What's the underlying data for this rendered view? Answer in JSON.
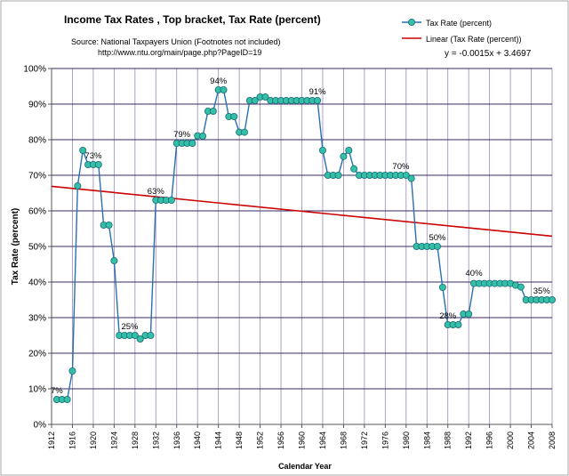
{
  "chart_data": {
    "type": "line",
    "title": "Income Tax Rates ,  Top bracket,  Tax Rate (percent)",
    "source_line": "Source: National Taxpayers Union (Footnotes not included)",
    "url_line": "http://www.ntu.org/main/page.php?PageID=19",
    "xlabel": "Calendar Year",
    "ylabel": "Tax Rate (percent)",
    "xlim": [
      1912,
      2008
    ],
    "ylim": [
      0,
      100
    ],
    "x_ticks": [
      1912,
      1916,
      1920,
      1924,
      1928,
      1932,
      1936,
      1940,
      1944,
      1948,
      1952,
      1956,
      1960,
      1964,
      1968,
      1972,
      1976,
      1980,
      1984,
      1988,
      1992,
      1996,
      2000,
      2004,
      2008
    ],
    "y_ticks": [
      0,
      10,
      20,
      30,
      40,
      50,
      60,
      70,
      80,
      90,
      100
    ],
    "y_tick_suffix": "%",
    "grid": true,
    "legend_position": "top-right",
    "series": [
      {
        "name": "Tax Rate (percent)",
        "color": "#2a6fb0",
        "marker_color": "#33c0a6",
        "x": [
          1913,
          1914,
          1915,
          1916,
          1917,
          1918,
          1919,
          1920,
          1921,
          1922,
          1923,
          1924,
          1925,
          1926,
          1927,
          1928,
          1929,
          1930,
          1931,
          1932,
          1933,
          1934,
          1935,
          1936,
          1937,
          1938,
          1939,
          1940,
          1941,
          1942,
          1943,
          1944,
          1945,
          1946,
          1947,
          1948,
          1949,
          1950,
          1951,
          1952,
          1953,
          1954,
          1955,
          1956,
          1957,
          1958,
          1959,
          1960,
          1961,
          1962,
          1963,
          1964,
          1965,
          1966,
          1967,
          1968,
          1969,
          1970,
          1971,
          1972,
          1973,
          1974,
          1975,
          1976,
          1977,
          1978,
          1979,
          1980,
          1981,
          1982,
          1983,
          1984,
          1985,
          1986,
          1987,
          1988,
          1989,
          1990,
          1991,
          1992,
          1993,
          1994,
          1995,
          1996,
          1997,
          1998,
          1999,
          2000,
          2001,
          2002,
          2003,
          2004,
          2005,
          2006,
          2007,
          2008
        ],
        "values": [
          7,
          7,
          7,
          15,
          67,
          77,
          73,
          73,
          73,
          56,
          56,
          46,
          25,
          25,
          25,
          25,
          24,
          25,
          25,
          63,
          63,
          63,
          63,
          79,
          79,
          79,
          79,
          81.1,
          81,
          88,
          88,
          94,
          94,
          86.5,
          86.5,
          82.1,
          82.1,
          91,
          91,
          92,
          92,
          91,
          91,
          91,
          91,
          91,
          91,
          91,
          91,
          91,
          91,
          77,
          70,
          70,
          70,
          75.3,
          77,
          71.8,
          70,
          70,
          70,
          70,
          70,
          70,
          70,
          70,
          70,
          70,
          69.1,
          50,
          50,
          50,
          50,
          50,
          38.5,
          28,
          28,
          28,
          31,
          31,
          39.6,
          39.6,
          39.6,
          39.6,
          39.6,
          39.6,
          39.6,
          39.6,
          39.1,
          38.6,
          35,
          35,
          35,
          35,
          35,
          35
        ]
      },
      {
        "name": "Linear (Tax Rate (percent))",
        "color": "#cc0000",
        "type": "trendline",
        "x": [
          1912,
          2008
        ],
        "values": [
          66.9,
          52.9
        ]
      }
    ],
    "annotations": [
      {
        "text": "7%",
        "x": 1913,
        "y": 7
      },
      {
        "text": "73%",
        "x": 1920,
        "y": 73
      },
      {
        "text": "25%",
        "x": 1927,
        "y": 25
      },
      {
        "text": "63%",
        "x": 1932,
        "y": 63
      },
      {
        "text": "79%",
        "x": 1937,
        "y": 79
      },
      {
        "text": "94%",
        "x": 1944,
        "y": 94
      },
      {
        "text": "91%",
        "x": 1963,
        "y": 91
      },
      {
        "text": "70%",
        "x": 1979,
        "y": 70
      },
      {
        "text": "50%",
        "x": 1986,
        "y": 50
      },
      {
        "text": "28%",
        "x": 1988,
        "y": 28
      },
      {
        "text": "40%",
        "x": 1993,
        "y": 40
      },
      {
        "text": "35%",
        "x": 2006,
        "y": 35
      }
    ],
    "trend_equation": "y = -0.0015x + 3.4697"
  },
  "colors": {
    "grid_major": "#3a2a60",
    "grid_vertical": "#9a8ab8",
    "axis": "#555555",
    "frame": "#aaaaaa"
  }
}
